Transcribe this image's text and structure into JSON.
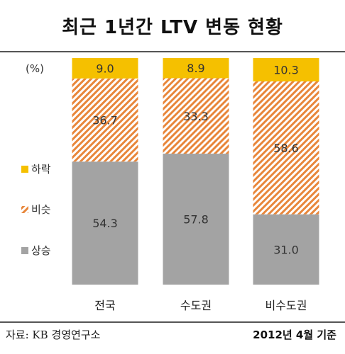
{
  "title": "최근 1년간 LTV 변동 현황",
  "source": "자료: KB 경영연구소",
  "basis": "2012년 4월 기준",
  "colors": {
    "down": "#f5c000",
    "flat": "#e8863a",
    "up": "#a3a3a3"
  },
  "chart_data": {
    "type": "bar",
    "stacked": true,
    "unit_label": "(%)",
    "categories": [
      "전국",
      "수도권",
      "비수도권"
    ],
    "series": [
      {
        "name": "상승",
        "values": [
          54.3,
          57.8,
          31.0
        ],
        "labels": [
          "54.3",
          "57.8",
          "31.0"
        ]
      },
      {
        "name": "비슷",
        "values": [
          36.7,
          33.3,
          58.6
        ],
        "labels": [
          "36.7",
          "33.3",
          "58.6"
        ]
      },
      {
        "name": "하락",
        "values": [
          9.0,
          8.9,
          10.3
        ],
        "labels": [
          "9.0",
          "8.9",
          "10.3"
        ]
      }
    ],
    "ylim": [
      0,
      100
    ],
    "legend": [
      "하락",
      "비슷",
      "상승"
    ],
    "grid": false
  }
}
